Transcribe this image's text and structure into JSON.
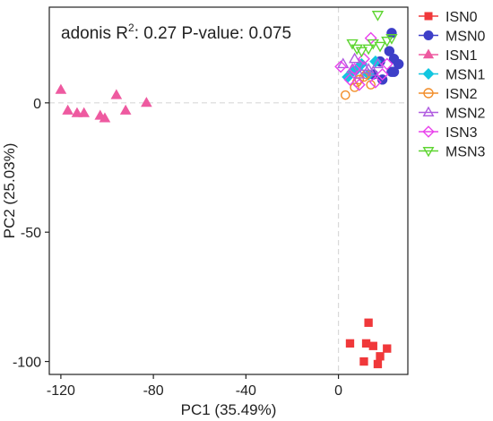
{
  "chart_data": {
    "type": "scatter",
    "annotation": {
      "prefix": "adonis R",
      "superscript": "2",
      "suffix": ": 0.27 P-value: 0.075"
    },
    "xlabel": "PC1 (35.49%)",
    "ylabel": "PC2 (25.03%)",
    "xlim": [
      -125,
      30
    ],
    "ylim": [
      -105,
      37
    ],
    "xticks": [
      -120,
      -80,
      -40,
      0
    ],
    "yticks": [
      0,
      -50,
      -100
    ],
    "grid": false,
    "reference_lines": {
      "x": 0,
      "y": 0
    },
    "legend_position": "right",
    "series": [
      {
        "name": "ISN0",
        "color": "#F0383A",
        "marker": "square",
        "filled": true,
        "points": [
          [
            13,
            -85
          ],
          [
            5,
            -93
          ],
          [
            12,
            -93
          ],
          [
            15,
            -94
          ],
          [
            21,
            -95
          ],
          [
            18,
            -98
          ],
          [
            11,
            -100
          ],
          [
            17,
            -101
          ]
        ]
      },
      {
        "name": "MSN0",
        "color": "#3D3FC8",
        "marker": "circle",
        "filled": true,
        "points": [
          [
            23,
            27
          ],
          [
            22,
            20
          ],
          [
            18,
            16
          ],
          [
            24,
            17
          ],
          [
            26,
            15
          ],
          [
            23,
            12
          ],
          [
            15,
            11
          ],
          [
            19,
            9
          ],
          [
            24,
            12
          ]
        ]
      },
      {
        "name": "ISN1",
        "color": "#EE5AA0",
        "marker": "triangle",
        "filled": true,
        "points": [
          [
            -120,
            5
          ],
          [
            -96,
            3
          ],
          [
            -117,
            -3
          ],
          [
            -113,
            -4
          ],
          [
            -110,
            -4
          ],
          [
            -103,
            -5
          ],
          [
            -101,
            -6
          ],
          [
            -92,
            -3
          ],
          [
            -83,
            0
          ]
        ]
      },
      {
        "name": "MSN1",
        "color": "#12C6E0",
        "marker": "diamond",
        "filled": true,
        "points": [
          [
            8,
            13
          ],
          [
            4,
            10
          ],
          [
            10,
            15
          ],
          [
            16,
            16
          ],
          [
            6,
            12
          ],
          [
            13,
            11
          ]
        ]
      },
      {
        "name": "ISN2",
        "color": "#F28E2B",
        "marker": "circle",
        "filled": false,
        "points": [
          [
            3,
            3
          ],
          [
            8,
            8
          ],
          [
            11,
            10
          ],
          [
            7,
            6
          ],
          [
            14,
            7
          ],
          [
            12,
            11
          ],
          [
            9,
            9
          ]
        ]
      },
      {
        "name": "MSN2",
        "color": "#B05CE0",
        "marker": "triangle",
        "filled": false,
        "points": [
          [
            6,
            13
          ],
          [
            9,
            11
          ],
          [
            13,
            13
          ],
          [
            17,
            15
          ],
          [
            11,
            14
          ],
          [
            15,
            12
          ],
          [
            2,
            15
          ],
          [
            7,
            17
          ]
        ]
      },
      {
        "name": "ISN3",
        "color": "#E942EC",
        "marker": "diamond",
        "filled": false,
        "points": [
          [
            1,
            14
          ],
          [
            5,
            9
          ],
          [
            9,
            7
          ],
          [
            11,
            17
          ],
          [
            14,
            25
          ],
          [
            16,
            8
          ],
          [
            19,
            11
          ],
          [
            21,
            15
          ],
          [
            7,
            13
          ]
        ]
      },
      {
        "name": "MSN3",
        "color": "#5ED531",
        "marker": "triangle-down",
        "filled": false,
        "points": [
          [
            6,
            23
          ],
          [
            10,
            20
          ],
          [
            15,
            23
          ],
          [
            18,
            22
          ],
          [
            21,
            24
          ],
          [
            23,
            25
          ],
          [
            17,
            34
          ],
          [
            8,
            21
          ],
          [
            13,
            21
          ]
        ]
      }
    ]
  }
}
